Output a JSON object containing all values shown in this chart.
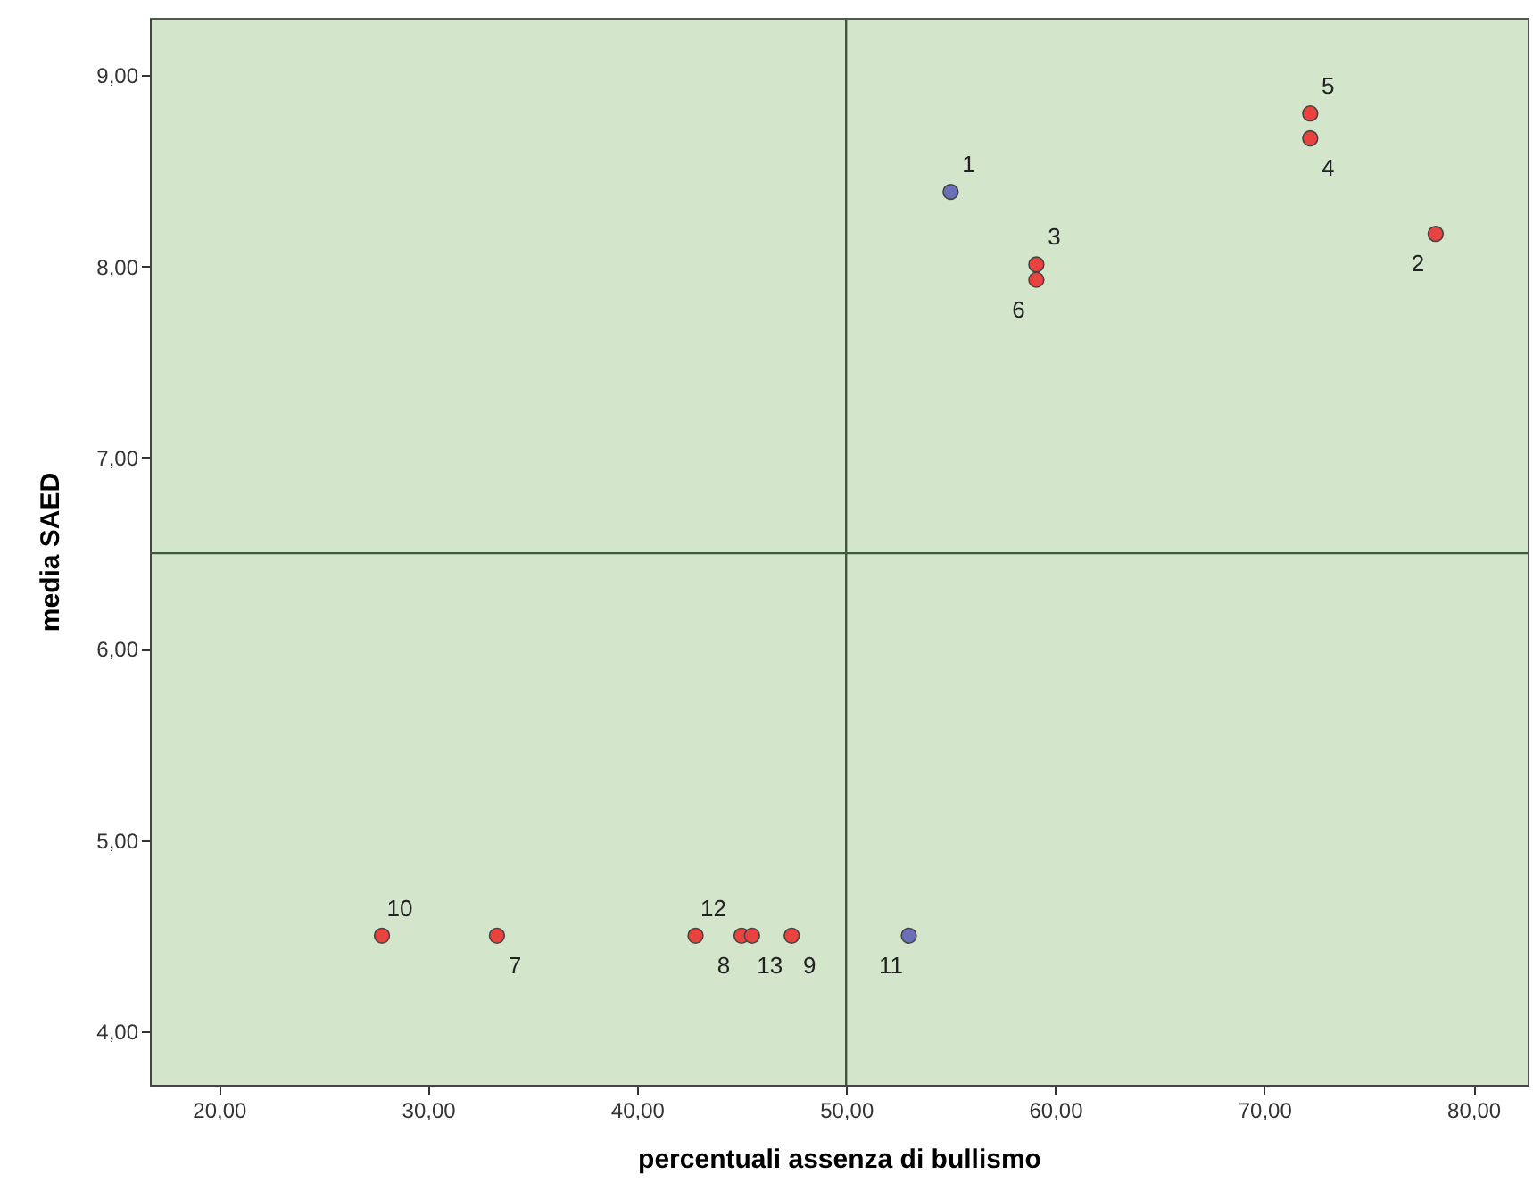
{
  "chart_data": {
    "type": "scatter",
    "xlabel": "percentuali assenza di  bullismo",
    "ylabel": "media SAED",
    "xlim": [
      16.7,
      82.6
    ],
    "xticks": [
      {
        "value": 20,
        "label": "20,00"
      },
      {
        "value": 30,
        "label": "30,00"
      },
      {
        "value": 40,
        "label": "40,00"
      },
      {
        "value": 50,
        "label": "50,00"
      },
      {
        "value": 60,
        "label": "60,00"
      },
      {
        "value": 70,
        "label": "70,00"
      },
      {
        "value": 80,
        "label": "80,00"
      }
    ],
    "ylim": [
      3.72,
      9.3
    ],
    "yticks": [
      {
        "value": 4,
        "label": "4,00"
      },
      {
        "value": 5,
        "label": "5,00"
      },
      {
        "value": 6,
        "label": "6,00"
      },
      {
        "value": 7,
        "label": "7,00"
      },
      {
        "value": 8,
        "label": "8,00"
      },
      {
        "value": 9,
        "label": "9,00"
      }
    ],
    "grid": false,
    "marker": "circle",
    "series": [
      {
        "color": "#e8433f",
        "x": [
          78.2,
          59.1,
          72.2,
          72.2,
          59.1,
          33.3,
          45.0,
          47.4,
          27.8,
          42.8,
          45.5
        ],
        "values": [
          8.17,
          8.01,
          8.67,
          8.8,
          7.93,
          4.5,
          4.5,
          4.5,
          4.5,
          4.5,
          4.5
        ]
      },
      {
        "color": "#6a6fb7",
        "x": [
          55.0,
          53.0
        ],
        "values": [
          8.39,
          4.5
        ]
      }
    ],
    "ref_lines": [
      {
        "axis": "x",
        "value": 50,
        "color": "#3f5a3f"
      },
      {
        "axis": "y",
        "value": 6.5,
        "color": "#3f5a3f"
      }
    ],
    "annotations": [
      {
        "text": "10",
        "x": 27.8,
        "y": 4.5
      },
      {
        "text": "7",
        "x": 33.3,
        "y": 4.5
      },
      {
        "text": "8",
        "x": 45.0,
        "y": 4.5
      },
      {
        "text": "12",
        "x": 42.8,
        "y": 4.5
      },
      {
        "text": "13",
        "x": 45.5,
        "y": 4.5
      },
      {
        "text": "6",
        "x": 59.1,
        "y": 7.93
      },
      {
        "text": "3",
        "x": 59.1,
        "y": 8.01
      },
      {
        "text": "9",
        "x": 47.4,
        "y": 4.5
      },
      {
        "text": "2",
        "x": 78.2,
        "y": 8.17
      },
      {
        "text": "5",
        "x": 72.2,
        "y": 8.8
      },
      {
        "text": "4",
        "x": 72.2,
        "y": 8.67
      },
      {
        "text": "11",
        "x": 53.0,
        "y": 4.5
      },
      {
        "text": "1",
        "x": 55.0,
        "y": 8.39
      }
    ]
  }
}
